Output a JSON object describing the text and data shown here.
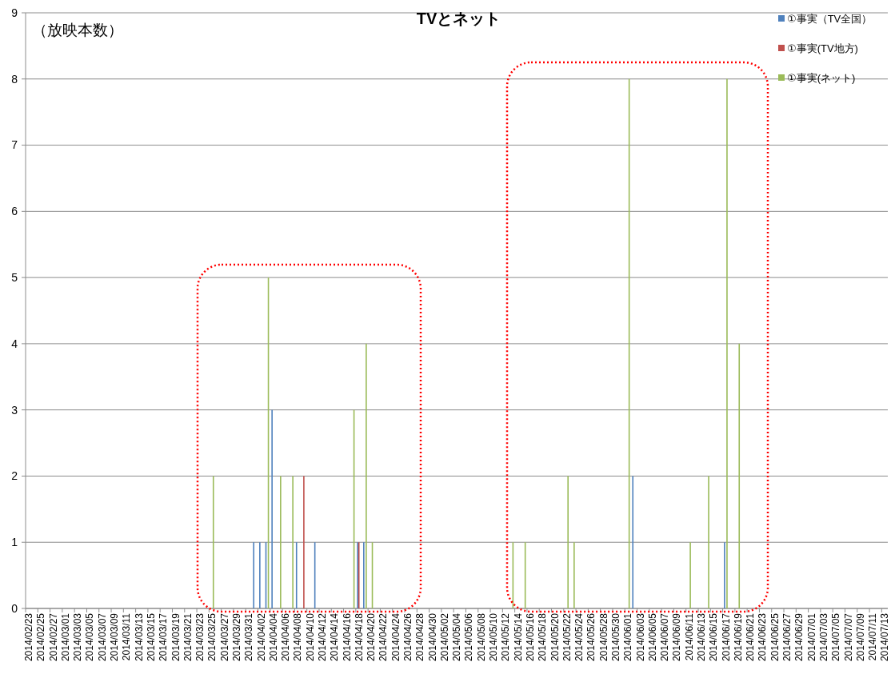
{
  "chart_data": {
    "type": "bar",
    "title": "TVとネット",
    "ylabel": "（放映本数）",
    "categories": [
      "2014/02/23",
      null,
      "2014/02/25",
      null,
      "2014/02/27",
      null,
      "2014/03/01",
      null,
      "2014/03/03",
      null,
      "2014/03/05",
      null,
      "2014/03/07",
      null,
      "2014/03/09",
      null,
      "2014/03/11",
      null,
      "2014/03/13",
      null,
      "2014/03/15",
      null,
      "2014/03/17",
      null,
      "2014/03/19",
      null,
      "2014/03/21",
      null,
      "2014/03/23",
      null,
      "2014/03/25",
      null,
      "2014/03/27",
      null,
      "2014/03/29",
      null,
      "2014/03/31",
      null,
      "2014/04/02",
      null,
      "2014/04/04",
      null,
      "2014/04/06",
      null,
      "2014/04/08",
      null,
      "2014/04/10",
      null,
      "2014/04/12",
      null,
      "2014/04/14",
      null,
      "2014/04/16",
      null,
      "2014/04/18",
      null,
      "2014/04/20",
      null,
      "2014/04/22",
      null,
      "2014/04/24",
      null,
      "2014/04/26",
      null,
      "2014/04/28",
      null,
      "2014/04/30",
      null,
      "2014/05/02",
      null,
      "2014/05/04",
      null,
      "2014/05/06",
      null,
      "2014/05/08",
      null,
      "2014/05/10",
      null,
      "2014/05/12",
      null,
      "2014/05/14",
      null,
      "2014/05/16",
      null,
      "2014/05/18",
      null,
      "2014/05/20",
      null,
      "2014/05/22",
      null,
      "2014/05/24",
      null,
      "2014/05/26",
      null,
      "2014/05/28",
      null,
      "2014/05/30",
      null,
      "2014/06/01",
      null,
      "2014/06/03",
      null,
      "2014/06/05",
      null,
      "2014/06/07",
      null,
      "2014/06/09",
      null,
      "2014/06/11",
      null,
      "2014/06/13",
      null,
      "2014/06/15",
      null,
      "2014/06/17",
      null,
      "2014/06/19",
      null,
      "2014/06/21",
      null,
      "2014/06/23",
      null,
      "2014/06/25",
      null,
      "2014/06/27",
      null,
      "2014/06/29",
      null,
      "2014/07/01",
      null,
      "2014/07/03",
      null,
      "2014/07/05",
      null,
      "2014/07/07",
      null,
      "2014/07/09",
      null,
      "2014/07/11",
      null,
      "2014/07/13"
    ],
    "series": [
      {
        "name": "①事実（TV全国）",
        "color": "#4f81bd",
        "values": [
          0,
          0,
          0,
          0,
          0,
          0,
          0,
          0,
          0,
          0,
          0,
          0,
          0,
          0,
          0,
          0,
          0,
          0,
          0,
          0,
          0,
          0,
          0,
          0,
          0,
          0,
          0,
          0,
          0,
          0,
          0,
          0,
          0,
          0,
          0,
          0,
          0,
          1,
          1,
          1,
          3,
          0,
          0,
          0,
          1,
          0,
          0,
          1,
          0,
          0,
          0,
          0,
          0,
          0,
          1,
          1,
          0,
          0,
          0,
          0,
          0,
          0,
          0,
          0,
          0,
          0,
          0,
          0,
          0,
          0,
          0,
          0,
          0,
          0,
          0,
          0,
          0,
          0,
          0,
          0,
          0,
          0,
          0,
          0,
          0,
          0,
          0,
          0,
          0,
          0,
          0,
          0,
          0,
          0,
          0,
          0,
          0,
          0,
          0,
          2,
          0,
          0,
          0,
          0,
          0,
          0,
          0,
          0,
          0,
          0,
          0,
          0,
          0,
          0,
          1,
          0,
          0,
          0,
          0,
          0,
          0,
          0,
          0,
          0,
          0,
          0,
          0,
          0,
          0,
          0,
          0,
          0,
          0,
          0,
          0,
          0,
          0,
          0,
          0,
          0,
          0
        ]
      },
      {
        "name": "①事実(TV地方)",
        "color": "#c0504d",
        "values": [
          0,
          0,
          0,
          0,
          0,
          0,
          0,
          0,
          0,
          0,
          0,
          0,
          0,
          0,
          0,
          0,
          0,
          0,
          0,
          0,
          0,
          0,
          0,
          0,
          0,
          0,
          0,
          0,
          0,
          0,
          0,
          0,
          0,
          0,
          0,
          0,
          0,
          0,
          0,
          0,
          0,
          0,
          0,
          0,
          0,
          2,
          0,
          0,
          0,
          0,
          0,
          0,
          0,
          0,
          1,
          0,
          0,
          0,
          0,
          0,
          0,
          0,
          0,
          0,
          0,
          0,
          0,
          0,
          0,
          0,
          0,
          0,
          0,
          0,
          0,
          0,
          0,
          0,
          0,
          0,
          0,
          0,
          0,
          0,
          0,
          0,
          0,
          0,
          0,
          0,
          0,
          0,
          0,
          0,
          0,
          0,
          0,
          0,
          0,
          0,
          0,
          0,
          0,
          0,
          0,
          0,
          0,
          0,
          0,
          0,
          0,
          0,
          0,
          0,
          0,
          0,
          0,
          0,
          0,
          0,
          0,
          0,
          0,
          0,
          0,
          0,
          0,
          0,
          0,
          0,
          0,
          0,
          0,
          0,
          0,
          0,
          0,
          0,
          0,
          0,
          0
        ]
      },
      {
        "name": "①事実(ネット)",
        "color": "#9bbb59",
        "values": [
          0,
          0,
          0,
          0,
          0,
          0,
          0,
          0,
          0,
          0,
          0,
          0,
          0,
          0,
          0,
          0,
          0,
          0,
          0,
          0,
          0,
          0,
          0,
          0,
          0,
          0,
          0,
          0,
          0,
          0,
          2,
          0,
          0,
          0,
          0,
          0,
          0,
          0,
          0,
          5,
          0,
          2,
          0,
          2,
          0,
          0,
          0,
          0,
          0,
          0,
          0,
          0,
          0,
          3,
          0,
          4,
          1,
          0,
          0,
          0,
          0,
          0,
          0,
          0,
          0,
          0,
          0,
          0,
          0,
          0,
          0,
          0,
          0,
          0,
          0,
          0,
          0,
          0,
          0,
          1,
          0,
          1,
          0,
          0,
          0,
          0,
          0,
          0,
          2,
          1,
          0,
          0,
          0,
          0,
          0,
          0,
          0,
          0,
          8,
          0,
          0,
          0,
          0,
          0,
          0,
          0,
          0,
          0,
          1,
          0,
          0,
          2,
          0,
          0,
          8,
          0,
          4,
          0,
          0,
          0,
          0,
          0,
          0,
          0,
          0,
          0,
          0,
          0,
          0,
          0,
          0,
          0,
          0,
          0,
          0,
          0,
          0,
          0,
          0,
          0,
          0
        ]
      }
    ],
    "ylim": [
      0,
      9
    ],
    "yticks": [
      0,
      1,
      2,
      3,
      4,
      5,
      6,
      7,
      8,
      9
    ],
    "grid": "y",
    "legend": "top right"
  }
}
